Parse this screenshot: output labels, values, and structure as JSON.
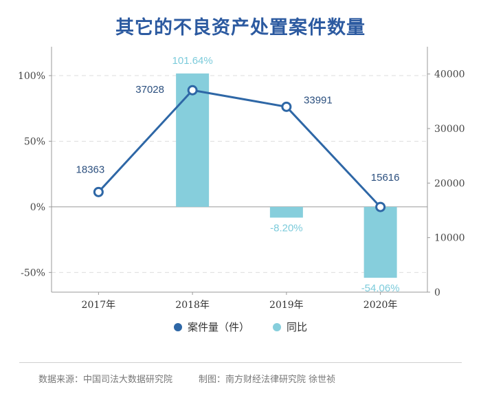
{
  "chart_data": {
    "type": "bar+line",
    "title": "其它的不良资产处置案件数量",
    "categories": [
      "2017年",
      "2018年",
      "2019年",
      "2020年"
    ],
    "series": [
      {
        "name": "案件量（件）",
        "type": "line",
        "axis": "right",
        "values": [
          18363,
          37028,
          33991,
          15616
        ],
        "labels": [
          "18363",
          "37028",
          "33991",
          "15616"
        ]
      },
      {
        "name": "同比",
        "type": "bar",
        "axis": "left",
        "values": [
          null,
          101.64,
          -8.2,
          -54.06
        ],
        "labels": [
          "",
          "101.64%",
          "-8.20%",
          "-54.06%"
        ]
      }
    ],
    "left_axis": {
      "ticks": [
        "100%",
        "50%",
        "0%",
        "-50%"
      ],
      "tick_values": [
        100,
        50,
        0,
        -50
      ],
      "range": [
        -65,
        122
      ]
    },
    "right_axis": {
      "ticks": [
        "40000",
        "30000",
        "20000",
        "10000",
        "0"
      ],
      "tick_values": [
        40000,
        30000,
        20000,
        10000,
        0
      ],
      "range": [
        0,
        45000
      ]
    },
    "colors": {
      "line": "#2e67a6",
      "bar": "#86cedc",
      "title": "#2c5aa0"
    },
    "grid": "dashed-horizontal",
    "legend_position": "bottom"
  },
  "legend": {
    "line_label": "案件量（件）",
    "bar_label": "同比"
  },
  "footer": {
    "source": "数据来源：中国司法大数据研究院",
    "credit": "制图：南方财经法律研究院  徐世祯"
  }
}
